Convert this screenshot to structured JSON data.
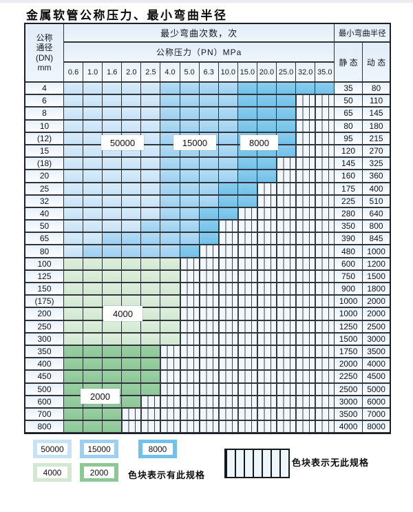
{
  "title": "金属软管公称压力、最小弯曲半径",
  "header": {
    "dn_lines": [
      "公称",
      "通径",
      "(DN)",
      "mm"
    ],
    "cycles_header": "最少弯曲次数，次",
    "pressure_header": "公称压力（PN）MPa",
    "pressures": [
      "0.6",
      "1.0",
      "1.6",
      "2.0",
      "2.5",
      "4.0",
      "5.0",
      "6.3",
      "10.0",
      "15.0",
      "20.0",
      "25.0",
      "32.0",
      "35.0"
    ],
    "radius_header": "最小弯曲半径",
    "static_label": "静 态",
    "dynamic_label": "动 态"
  },
  "colors": {
    "blue_50000": "#c7e2f6",
    "blue_15000": "#9dd0f0",
    "blue_8000": "#72c1e8",
    "green_4000": "#d2e8d1",
    "green_2000": "#8cc796",
    "hatch_bg": "#f1f7fc",
    "grid_line": "#2d3338"
  },
  "labels": {
    "b50000": "50000",
    "b15000": "15000",
    "b8000": "8000",
    "g4000": "4000",
    "g2000": "2000"
  },
  "rows": [
    {
      "dn": "4",
      "end": 13,
      "med": 5,
      "dark": 9,
      "zone": "b",
      "static": "35",
      "dynamic": "80"
    },
    {
      "dn": "6",
      "end": 11,
      "med": 5,
      "dark": 9,
      "zone": "b",
      "static": "50",
      "dynamic": "110"
    },
    {
      "dn": "8",
      "end": 11,
      "med": 5,
      "dark": 9,
      "zone": "b",
      "static": "65",
      "dynamic": "145"
    },
    {
      "dn": "10",
      "end": 11,
      "med": 5,
      "dark": 9,
      "zone": "b",
      "static": "80",
      "dynamic": "180"
    },
    {
      "dn": "(12)",
      "end": 11,
      "med": 5,
      "dark": 9,
      "zone": "b",
      "static": "95",
      "dynamic": "215"
    },
    {
      "dn": "15",
      "end": 11,
      "med": 5,
      "dark": 9,
      "zone": "b",
      "static": "120",
      "dynamic": "270"
    },
    {
      "dn": "(18)",
      "end": 10,
      "med": 5,
      "dark": 9,
      "zone": "b",
      "static": "145",
      "dynamic": "325"
    },
    {
      "dn": "20",
      "end": 10,
      "med": 5,
      "dark": 9,
      "zone": "b",
      "static": "160",
      "dynamic": "360"
    },
    {
      "dn": "25",
      "end": 9,
      "med": 5,
      "dark": 8,
      "zone": "b",
      "static": "175",
      "dynamic": "400"
    },
    {
      "dn": "32",
      "end": 9,
      "med": 5,
      "dark": 8,
      "zone": "b",
      "static": "225",
      "dynamic": "510"
    },
    {
      "dn": "40",
      "end": 8,
      "med": 5,
      "dark": 7,
      "zone": "b",
      "static": "280",
      "dynamic": "640"
    },
    {
      "dn": "50",
      "end": 7,
      "med": 4,
      "dark": 7,
      "zone": "b",
      "static": "350",
      "dynamic": "800"
    },
    {
      "dn": "65",
      "end": 7,
      "med": 2,
      "dark": 7,
      "zone": "b",
      "static": "390",
      "dynamic": "845"
    },
    {
      "dn": "80",
      "end": 6,
      "med": 1,
      "dark": 6,
      "zone": "b",
      "static": "480",
      "dynamic": "1000"
    },
    {
      "dn": "100",
      "end": 5,
      "zone": "gl",
      "static": "600",
      "dynamic": "1200"
    },
    {
      "dn": "125",
      "end": 5,
      "zone": "gl",
      "static": "750",
      "dynamic": "1500"
    },
    {
      "dn": "150",
      "end": 5,
      "zone": "gl",
      "static": "900",
      "dynamic": "1800"
    },
    {
      "dn": "(175)",
      "end": 5,
      "zone": "gl",
      "static": "1000",
      "dynamic": "2000"
    },
    {
      "dn": "200",
      "end": 5,
      "zone": "gl",
      "static": "1000",
      "dynamic": "2000"
    },
    {
      "dn": "250",
      "end": 5,
      "zone": "gl",
      "static": "1250",
      "dynamic": "2500"
    },
    {
      "dn": "300",
      "end": 5,
      "zone": "gl",
      "static": "1500",
      "dynamic": "3000"
    },
    {
      "dn": "350",
      "end": 4,
      "zone": "gd",
      "static": "1750",
      "dynamic": "3500"
    },
    {
      "dn": "400",
      "end": 4,
      "zone": "gd",
      "static": "2000",
      "dynamic": "4000"
    },
    {
      "dn": "450",
      "end": 4,
      "zone": "gd",
      "static": "2250",
      "dynamic": "4500"
    },
    {
      "dn": "500",
      "end": 4,
      "zone": "gd",
      "static": "2500",
      "dynamic": "5000"
    },
    {
      "dn": "600",
      "end": 3,
      "zone": "gd",
      "static": "3000",
      "dynamic": "6000"
    },
    {
      "dn": "700",
      "end": 2,
      "zone": "gd",
      "static": "3500",
      "dynamic": "7000"
    },
    {
      "dn": "800",
      "end": 2,
      "zone": "gd",
      "static": "4000",
      "dynamic": "8000"
    }
  ],
  "legend": {
    "note_available": "色块表示有此规格",
    "note_unavailable": "色块表示无此规格"
  }
}
